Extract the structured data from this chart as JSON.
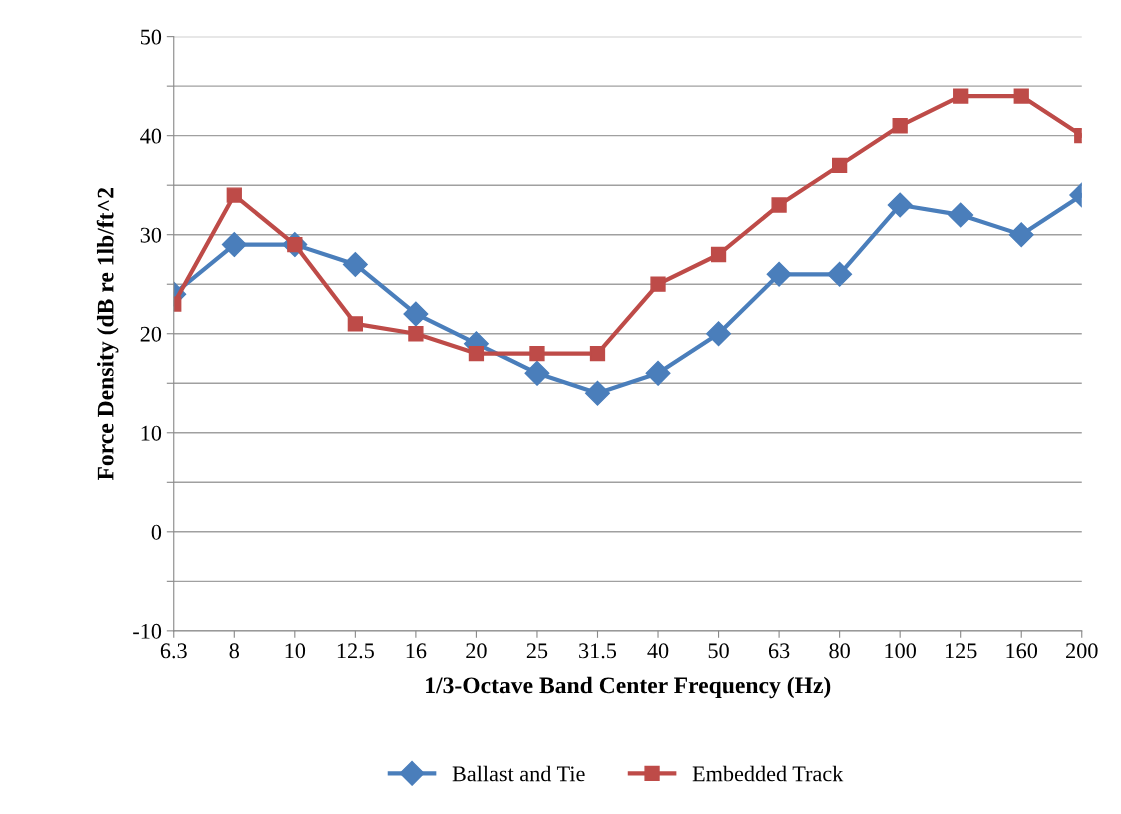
{
  "chart_data": {
    "type": "line",
    "xlabel": "1/3-Octave Band Center Frequency (Hz)",
    "ylabel": "Force Density (dB re 1lb/ft^2",
    "categories": [
      "6.3",
      "8",
      "10",
      "12.5",
      "16",
      "20",
      "25",
      "31.5",
      "40",
      "50",
      "63",
      "80",
      "100",
      "125",
      "160",
      "200"
    ],
    "series": [
      {
        "name": "Ballast and Tie",
        "color": "#4a7ebb",
        "marker": "diamond",
        "values": [
          24,
          29,
          29,
          27,
          22,
          19,
          16,
          14,
          16,
          20,
          26,
          26,
          33,
          32,
          30,
          34
        ]
      },
      {
        "name": "Embedded Track",
        "color": "#be4b48",
        "marker": "square",
        "values": [
          23,
          34,
          29,
          21,
          20,
          18,
          18,
          18,
          25,
          28,
          33,
          37,
          41,
          44,
          44,
          40
        ]
      }
    ],
    "ylim": [
      -10,
      50
    ],
    "yticks": [
      -10,
      {
        "value": -5,
        "label": null
      },
      0,
      {
        "value": 5,
        "label": null
      },
      10,
      {
        "value": 15,
        "label": null
      },
      20,
      {
        "value": 25,
        "label": null
      },
      30,
      {
        "value": 35,
        "label": null
      },
      40,
      {
        "value": 45,
        "label": null
      },
      50
    ],
    "grid": "y",
    "legend": "bottom",
    "line_style": "solid"
  }
}
